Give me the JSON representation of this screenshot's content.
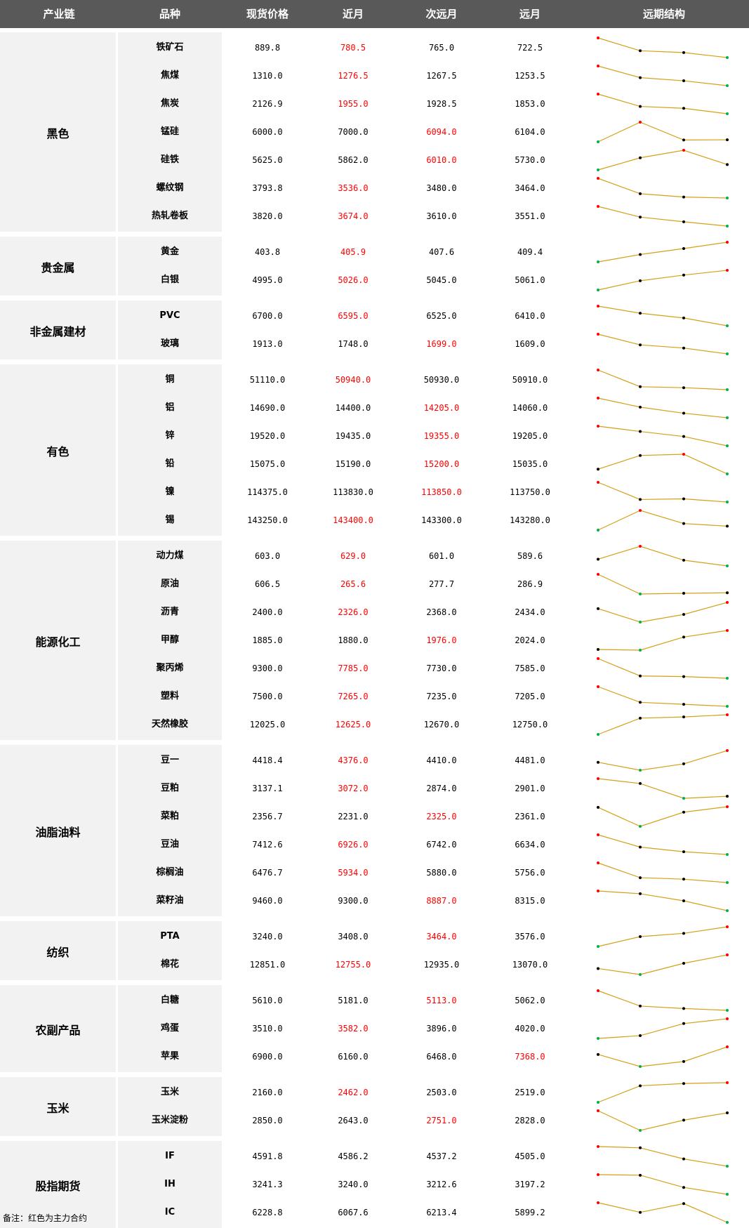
{
  "header": [
    "产业链",
    "品种",
    "现货价格",
    "近月",
    "次远月",
    "远月",
    "远期结构"
  ],
  "groups": [
    {
      "name": "黑色",
      "items": [
        {
          "name": "铁矿石",
          "spot": "889.8",
          "near": "780.5",
          "next": "765.0",
          "far": "722.5",
          "main": 1
        },
        {
          "name": "焦煤",
          "spot": "1310.0",
          "near": "1276.5",
          "next": "1267.5",
          "far": "1253.5",
          "main": 1
        },
        {
          "name": "焦炭",
          "spot": "2126.9",
          "near": "1955.0",
          "next": "1928.5",
          "far": "1853.0",
          "main": 1
        },
        {
          "name": "锰硅",
          "spot": "6000.0",
          "near": "7000.0",
          "next": "6094.0",
          "far": "6104.0",
          "main": 2
        },
        {
          "name": "硅铁",
          "spot": "5625.0",
          "near": "5862.0",
          "next": "6010.0",
          "far": "5730.0",
          "main": 2
        },
        {
          "name": "螺纹钢",
          "spot": "3793.8",
          "near": "3536.0",
          "next": "3480.0",
          "far": "3464.0",
          "main": 1
        },
        {
          "name": "热轧卷板",
          "spot": "3820.0",
          "near": "3674.0",
          "next": "3610.0",
          "far": "3551.0",
          "main": 1
        }
      ]
    },
    {
      "name": "贵金属",
      "items": [
        {
          "name": "黄金",
          "spot": "403.8",
          "near": "405.9",
          "next": "407.6",
          "far": "409.4",
          "main": 1
        },
        {
          "name": "白银",
          "spot": "4995.0",
          "near": "5026.0",
          "next": "5045.0",
          "far": "5061.0",
          "main": 1
        }
      ]
    },
    {
      "name": "非金属建材",
      "items": [
        {
          "name": "PVC",
          "spot": "6700.0",
          "near": "6595.0",
          "next": "6525.0",
          "far": "6410.0",
          "main": 1
        },
        {
          "name": "玻璃",
          "spot": "1913.0",
          "near": "1748.0",
          "next": "1699.0",
          "far": "1609.0",
          "main": 2
        }
      ]
    },
    {
      "name": "有色",
      "items": [
        {
          "name": "铜",
          "spot": "51110.0",
          "near": "50940.0",
          "next": "50930.0",
          "far": "50910.0",
          "main": 1
        },
        {
          "name": "铝",
          "spot": "14690.0",
          "near": "14400.0",
          "next": "14205.0",
          "far": "14060.0",
          "main": 2
        },
        {
          "name": "锌",
          "spot": "19520.0",
          "near": "19435.0",
          "next": "19355.0",
          "far": "19205.0",
          "main": 2
        },
        {
          "name": "铅",
          "spot": "15075.0",
          "near": "15190.0",
          "next": "15200.0",
          "far": "15035.0",
          "main": 2
        },
        {
          "name": "镍",
          "spot": "114375.0",
          "near": "113830.0",
          "next": "113850.0",
          "far": "113750.0",
          "main": 2
        },
        {
          "name": "锡",
          "spot": "143250.0",
          "near": "143400.0",
          "next": "143300.0",
          "far": "143280.0",
          "main": 1
        }
      ]
    },
    {
      "name": "能源化工",
      "items": [
        {
          "name": "动力煤",
          "spot": "603.0",
          "near": "629.0",
          "next": "601.0",
          "far": "589.6",
          "main": 1
        },
        {
          "name": "原油",
          "spot": "606.5",
          "near": "265.6",
          "next": "277.7",
          "far": "286.9",
          "main": 1
        },
        {
          "name": "沥青",
          "spot": "2400.0",
          "near": "2326.0",
          "next": "2368.0",
          "far": "2434.0",
          "main": 1
        },
        {
          "name": "甲醇",
          "spot": "1885.0",
          "near": "1880.0",
          "next": "1976.0",
          "far": "2024.0",
          "main": 2
        },
        {
          "name": "聚丙烯",
          "spot": "9300.0",
          "near": "7785.0",
          "next": "7730.0",
          "far": "7585.0",
          "main": 1
        },
        {
          "name": "塑料",
          "spot": "7500.0",
          "near": "7265.0",
          "next": "7235.0",
          "far": "7205.0",
          "main": 1
        },
        {
          "name": "天然橡胶",
          "spot": "12025.0",
          "near": "12625.0",
          "next": "12670.0",
          "far": "12750.0",
          "main": 1
        }
      ]
    },
    {
      "name": "油脂油料",
      "items": [
        {
          "name": "豆一",
          "spot": "4418.4",
          "near": "4376.0",
          "next": "4410.0",
          "far": "4481.0",
          "main": 1
        },
        {
          "name": "豆粕",
          "spot": "3137.1",
          "near": "3072.0",
          "next": "2874.0",
          "far": "2901.0",
          "main": 1
        },
        {
          "name": "菜粕",
          "spot": "2356.7",
          "near": "2231.0",
          "next": "2325.0",
          "far": "2361.0",
          "main": 2
        },
        {
          "name": "豆油",
          "spot": "7412.6",
          "near": "6926.0",
          "next": "6742.0",
          "far": "6634.0",
          "main": 1
        },
        {
          "name": "棕榈油",
          "spot": "6476.7",
          "near": "5934.0",
          "next": "5880.0",
          "far": "5756.0",
          "main": 1
        },
        {
          "name": "菜籽油",
          "spot": "9460.0",
          "near": "9300.0",
          "next": "8887.0",
          "far": "8315.0",
          "main": 2
        }
      ]
    },
    {
      "name": "纺织",
      "items": [
        {
          "name": "PTA",
          "spot": "3240.0",
          "near": "3408.0",
          "next": "3464.0",
          "far": "3576.0",
          "main": 2
        },
        {
          "name": "棉花",
          "spot": "12851.0",
          "near": "12755.0",
          "next": "12935.0",
          "far": "13070.0",
          "main": 1
        }
      ]
    },
    {
      "name": "农副产品",
      "items": [
        {
          "name": "白糖",
          "spot": "5610.0",
          "near": "5181.0",
          "next": "5113.0",
          "far": "5062.0",
          "main": 2
        },
        {
          "name": "鸡蛋",
          "spot": "3510.0",
          "near": "3582.0",
          "next": "3896.0",
          "far": "4020.0",
          "main": 1
        },
        {
          "name": "苹果",
          "spot": "6900.0",
          "near": "6160.0",
          "next": "6468.0",
          "far": "7368.0",
          "main": 3
        }
      ]
    },
    {
      "name": "玉米",
      "items": [
        {
          "name": "玉米",
          "spot": "2160.0",
          "near": "2462.0",
          "next": "2503.0",
          "far": "2519.0",
          "main": 1
        },
        {
          "name": "玉米淀粉",
          "spot": "2850.0",
          "near": "2643.0",
          "next": "2751.0",
          "far": "2828.0",
          "main": 2
        }
      ]
    },
    {
      "name": "股指期货",
      "items": [
        {
          "name": "IF",
          "spot": "4591.8",
          "near": "4586.2",
          "next": "4537.2",
          "far": "4505.0",
          "main": 0
        },
        {
          "name": "IH",
          "spot": "3241.3",
          "near": "3240.0",
          "next": "3212.6",
          "far": "3197.2",
          "main": 0
        },
        {
          "name": "IC",
          "spot": "6228.8",
          "near": "6067.6",
          "next": "6213.4",
          "far": "5899.2",
          "main": 0
        }
      ]
    }
  ],
  "colors": {
    "line": "#d4a017",
    "max": "#ff0000",
    "min": "#00b050",
    "mid": "#000000",
    "main": "#ff0000"
  },
  "note": "备注：红色为主力合约"
}
